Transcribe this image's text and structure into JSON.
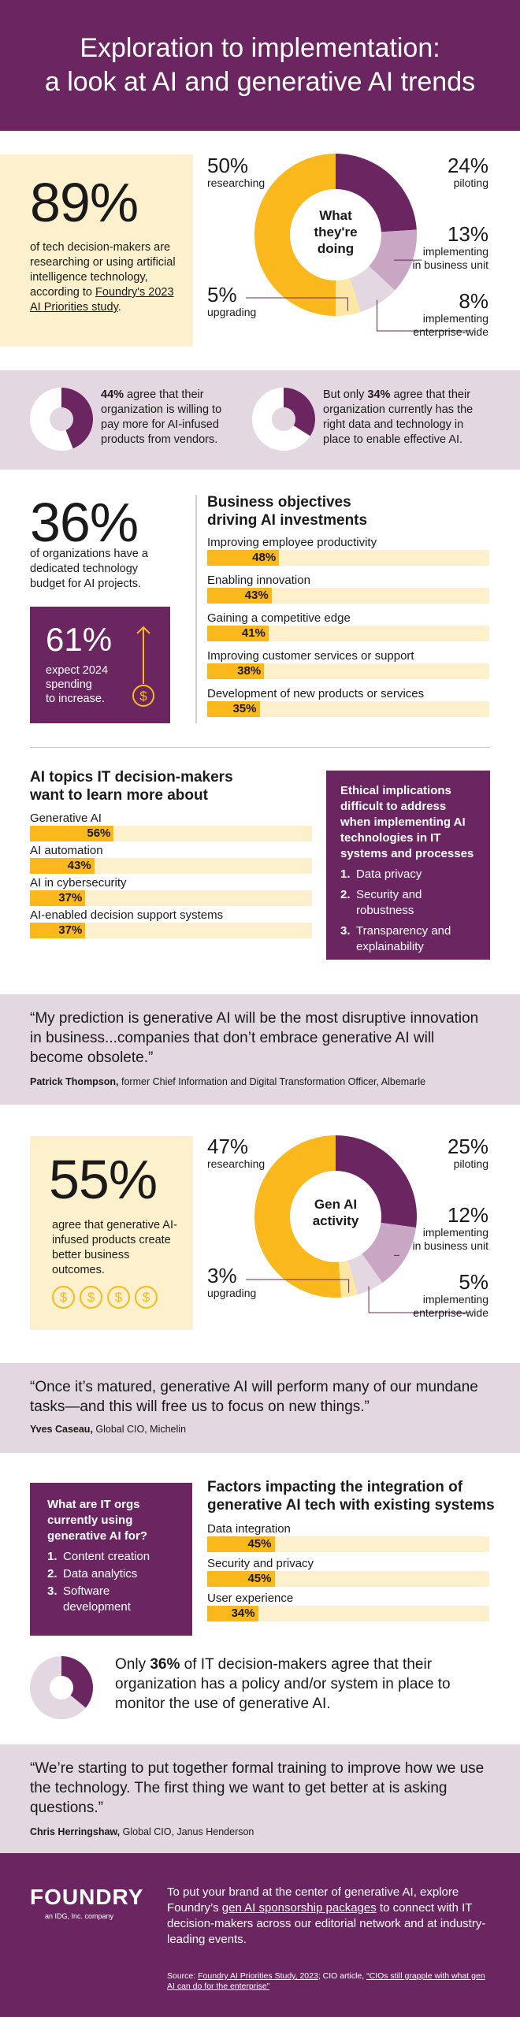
{
  "header": {
    "title_line1": "Exploration to implementation:",
    "title_line2": "a look at AI and generative AI trends"
  },
  "stat1": {
    "value": "89%",
    "text_pre": "of tech decision-makers are researching or using artificial intelligence technology, according to ",
    "link": "Foundry's 2023 AI Priorities study",
    "text_post": "."
  },
  "donut1": {
    "center_line1": "What",
    "center_line2": "they're",
    "center_line3": "doing",
    "segments": [
      {
        "pct": "50%",
        "label": "researching",
        "value": 50,
        "color": "#fbb81d"
      },
      {
        "pct": "24%",
        "label": "piloting",
        "value": 24,
        "color": "#6b2561"
      },
      {
        "pct": "13%",
        "label_line1": "implementing",
        "label_line2": "in business unit",
        "value": 13,
        "color": "#c9a6c3"
      },
      {
        "pct": "8%",
        "label_line1": "implementing",
        "label_line2": "enterprise-wide",
        "value": 8,
        "color": "#e3d7e2"
      },
      {
        "pct": "5%",
        "label": "upgrading",
        "value": 5,
        "color": "#fde7a6"
      }
    ]
  },
  "agree1": {
    "pct": "44%",
    "text": " agree that their organization is willing to pay more for AI-infused products from vendors.",
    "value": 44
  },
  "agree2": {
    "pre": "But only ",
    "pct": "34%",
    "text": " agree that their organization currently has the right data and technology in place to enable effective AI.",
    "value": 34
  },
  "budget": {
    "value": "36%",
    "text": "of organizations have a dedicated technology budget for AI projects."
  },
  "spend": {
    "value": "61%",
    "line1": "expect 2024",
    "line2": "spending",
    "line3": "to increase.",
    "icon": "dollar-coin-icon"
  },
  "objectives": {
    "title_line1": "Business objectives",
    "title_line2": "driving AI investments",
    "items": [
      {
        "label": "Improving employee productivity",
        "pct": "48%",
        "value": 48
      },
      {
        "label": "Enabling innovation",
        "pct": "43%",
        "value": 43
      },
      {
        "label": "Gaining a competitive edge",
        "pct": "41%",
        "value": 41
      },
      {
        "label": "Improving customer services or support",
        "pct": "38%",
        "value": 38
      },
      {
        "label": "Development of new products or services",
        "pct": "35%",
        "value": 35
      }
    ]
  },
  "topics": {
    "title_line1": "AI topics IT decision-makers",
    "title_line2": "want to learn more about",
    "items": [
      {
        "label": "Generative AI",
        "pct": "56%",
        "value": 56
      },
      {
        "label": "AI automation",
        "pct": "43%",
        "value": 43
      },
      {
        "label": "AI in cybersecurity",
        "pct": "37%",
        "value": 37
      },
      {
        "label": "AI-enabled decision support systems",
        "pct": "37%",
        "value": 37
      }
    ]
  },
  "ethics": {
    "title": "Ethical implications difficult to address when implementing AI technologies in IT systems and processes",
    "items": [
      {
        "n": "1.",
        "text": "Data privacy"
      },
      {
        "n": "2.",
        "text": "Security and robustness"
      },
      {
        "n": "3.",
        "text": "Transparency and explainability"
      }
    ]
  },
  "quote1": {
    "text": "“My prediction is generative AI will be the most disruptive innovation in business...companies that don’t embrace generative AI will become obsolete.”",
    "name": "Patrick Thompson,",
    "role": " former Chief Information and Digital Transformation Officer, Albemarle"
  },
  "stat55": {
    "value": "55%",
    "text": "agree that generative AI-infused products create better business outcomes.",
    "coin": "$"
  },
  "donut2": {
    "center_line1": "Gen AI",
    "center_line2": "activity",
    "segments": [
      {
        "pct": "47%",
        "label": "researching",
        "value": 47,
        "color": "#fbb81d"
      },
      {
        "pct": "25%",
        "label": "piloting",
        "value": 25,
        "color": "#6b2561"
      },
      {
        "pct": "12%",
        "label_line1": "implementing",
        "label_line2": "in business unit",
        "value": 12,
        "color": "#c9a6c3"
      },
      {
        "pct": "5%",
        "label_line1": "implementing",
        "label_line2": "enterprise-wide",
        "value": 5,
        "color": "#e3d7e2"
      },
      {
        "pct": "3%",
        "label": "upgrading",
        "value": 3,
        "color": "#fde7a6"
      }
    ]
  },
  "quote2": {
    "text": "“Once it’s matured, generative AI will perform many of our mundane tasks—and this will free us to focus on new things.”",
    "name": "Yves Caseau,",
    "role": " Global CIO, Michelin"
  },
  "uses": {
    "title": "What are IT orgs currently using generative AI for?",
    "items": [
      {
        "n": "1.",
        "text": "Content creation"
      },
      {
        "n": "2.",
        "text": "Data analytics"
      },
      {
        "n": "3.",
        "text": "Software development"
      }
    ]
  },
  "factors": {
    "title_line1": "Factors impacting the integration of",
    "title_line2": "generative AI tech with existing systems",
    "items": [
      {
        "label": "Data integration",
        "pct": "45%",
        "value": 45
      },
      {
        "label": "Security and privacy",
        "pct": "45%",
        "value": 45
      },
      {
        "label": "User experience",
        "pct": "34%",
        "value": 34
      }
    ]
  },
  "policy": {
    "pre": "Only ",
    "pct": "36%",
    "text": " of IT decision-makers agree that their organization has a policy and/or system in place to monitor the use of generative AI.",
    "value": 36
  },
  "quote3": {
    "text": "“We’re starting to put together formal training to improve how we use the technology. The first thing we want to get better at is asking questions.”",
    "name": "Chris Herringshaw,",
    "role": " Global CIO, Janus Henderson"
  },
  "footer": {
    "logo": "FOUNDRY",
    "tagline": "an IDG, Inc. company",
    "cta_pre": "To put your brand at the center of generative AI, explore Foundry’s ",
    "cta_link": "gen AI sponsorship packages",
    "cta_post": " to connect with IT decision-makers across our editorial network and at industry-leading events.",
    "source_pre": "Source: ",
    "source_link1": "Foundry AI Priorities Study, 2023",
    "source_mid": "; CIO article, ",
    "source_link2": "“CIOs still grapple with what gen AI can do for the enterprise”"
  },
  "colors": {
    "plum": "#6b2561",
    "gold": "#fbb81d",
    "cream": "#fdf0cc",
    "lavender": "#e3d7e2"
  },
  "chart_data": [
    {
      "type": "pie",
      "title": "What they're doing",
      "categories": [
        "researching",
        "piloting",
        "implementing in business unit",
        "implementing enterprise-wide",
        "upgrading"
      ],
      "values": [
        50,
        24,
        13,
        8,
        5
      ]
    },
    {
      "type": "bar",
      "title": "Business objectives driving AI investments",
      "categories": [
        "Improving employee productivity",
        "Enabling innovation",
        "Gaining a competitive edge",
        "Improving customer services or support",
        "Development of new products or services"
      ],
      "values": [
        48,
        43,
        41,
        38,
        35
      ]
    },
    {
      "type": "bar",
      "title": "AI topics IT decision-makers want to learn more about",
      "categories": [
        "Generative AI",
        "AI automation",
        "AI in cybersecurity",
        "AI-enabled decision support systems"
      ],
      "values": [
        56,
        43,
        37,
        37
      ]
    },
    {
      "type": "pie",
      "title": "Gen AI activity",
      "categories": [
        "researching",
        "piloting",
        "implementing in business unit",
        "implementing enterprise-wide",
        "upgrading"
      ],
      "values": [
        47,
        25,
        12,
        5,
        3
      ]
    },
    {
      "type": "bar",
      "title": "Factors impacting the integration of generative AI tech with existing systems",
      "categories": [
        "Data integration",
        "Security and privacy",
        "User experience"
      ],
      "values": [
        45,
        45,
        34
      ]
    }
  ]
}
